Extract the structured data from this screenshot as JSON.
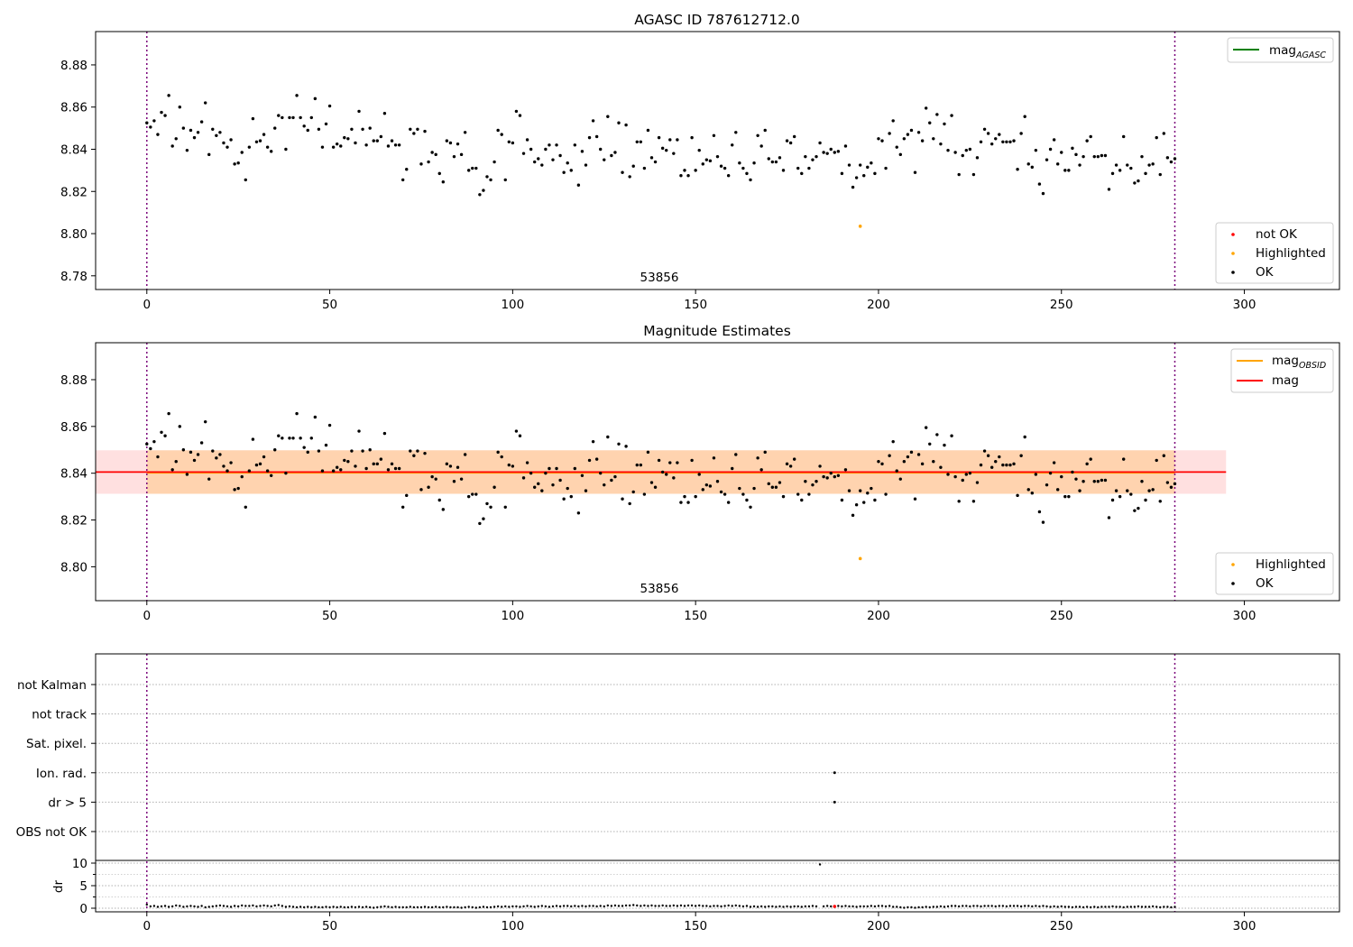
{
  "chart_data": [
    {
      "type": "scatter",
      "title": "AGASC ID 787612712.0",
      "annotation": "53856",
      "xlim": [
        -14,
        326
      ],
      "ylim": [
        8.7735,
        8.8958
      ],
      "x_ticks": [
        0,
        50,
        100,
        150,
        200,
        250,
        300
      ],
      "y_ticks": [
        8.78,
        8.8,
        8.82,
        8.84,
        8.86,
        8.88
      ],
      "y_tick_labels": [
        "8.78",
        "8.80",
        "8.82",
        "8.84",
        "8.86",
        "8.88"
      ],
      "vlines": [
        0,
        281
      ],
      "legend_top": [
        {
          "label": "mag",
          "subscript": "AGASC",
          "color": "#008000"
        }
      ],
      "legend_bottom": [
        {
          "label": "not OK",
          "color": "#ff0000"
        },
        {
          "label": "Highlighted",
          "color": "#ffa500"
        },
        {
          "label": "OK",
          "color": "#000000"
        }
      ],
      "series": [
        {
          "name": "Highlighted",
          "color": "#ffa500",
          "points": [
            [
              195,
              8.8035
            ]
          ]
        },
        {
          "name": "OK",
          "color": "#000000",
          "source": "magnitudes"
        }
      ]
    },
    {
      "type": "scatter",
      "title": "Magnitude Estimates",
      "annotation": "53856",
      "xlim": [
        -14,
        326
      ],
      "ylim": [
        8.7855,
        8.8958
      ],
      "x_ticks": [
        0,
        50,
        100,
        150,
        200,
        250,
        300
      ],
      "y_ticks": [
        8.8,
        8.82,
        8.84,
        8.86,
        8.88
      ],
      "y_tick_labels": [
        "8.80",
        "8.82",
        "8.84",
        "8.86",
        "8.88"
      ],
      "vlines": [
        0,
        281
      ],
      "mag": 8.8405,
      "mag_band": [
        8.8312,
        8.8498
      ],
      "mag_x_range": [
        -14,
        295
      ],
      "mag_obsid": 8.8402,
      "mag_obsid_band": [
        8.8312,
        8.8498
      ],
      "mag_obsid_x_range": [
        0,
        281
      ],
      "legend_top": [
        {
          "label": "mag",
          "subscript": "OBSID",
          "color": "#ffa500"
        },
        {
          "label": "mag",
          "subscript": "",
          "color": "#ff0000"
        }
      ],
      "legend_bottom": [
        {
          "label": "Highlighted",
          "color": "#ffa500"
        },
        {
          "label": "OK",
          "color": "#000000"
        }
      ],
      "series": [
        {
          "name": "Highlighted",
          "color": "#ffa500",
          "points": [
            [
              195,
              8.8035
            ]
          ]
        },
        {
          "name": "OK",
          "color": "#000000",
          "source": "magnitudes"
        }
      ]
    },
    {
      "type": "scatter",
      "xlim": [
        -14,
        326
      ],
      "x_ticks": [
        0,
        50,
        100,
        150,
        200,
        250,
        300
      ],
      "vlines": [
        0,
        281
      ],
      "flag_rows": [
        "not Kalman",
        "not track",
        "Sat. pixel.",
        "Ion. rad.",
        "dr > 5",
        "OBS not OK"
      ],
      "flag_points": [
        {
          "row": "Ion. rad.",
          "x": 188
        },
        {
          "row": "dr > 5",
          "x": 188
        }
      ],
      "dr_ylabel": "dr",
      "dr_ylim": [
        -0.8,
        10.6
      ],
      "dr_ticks": [
        0,
        5,
        10
      ],
      "dr_minor_ticks": [
        2.5,
        7.5
      ],
      "dr_outlier": {
        "x": 188,
        "y": 9.7,
        "color": "#ff0000"
      },
      "dr_values": [
        0.8,
        0.4,
        0.5,
        0.3,
        0.4,
        0.5,
        0.3,
        0.4,
        0.6,
        0.5,
        0.3,
        0.4,
        0.5,
        0.4,
        0.3,
        0.5,
        0.2,
        0.3,
        0.4,
        0.5,
        0.6,
        0.5,
        0.4,
        0.3,
        0.5,
        0.4,
        0.6,
        0.5,
        0.5,
        0.6,
        0.4,
        0.5,
        0.6,
        0.5,
        0.4,
        0.6,
        0.7,
        0.5,
        0.3,
        0.4,
        0.3,
        0.2,
        0.3,
        0.2,
        0.3,
        0.2,
        0.3,
        0.2,
        0.2,
        0.3,
        0.2,
        0.3,
        0.2,
        0.3,
        0.2,
        0.2,
        0.3,
        0.2,
        0.3,
        0.2,
        0.3,
        0.2,
        0.1,
        0.2,
        0.3,
        0.4,
        0.3,
        0.2,
        0.3,
        0.2,
        0.2,
        0.2,
        0.3,
        0.2,
        0.2,
        0.2,
        0.3,
        0.2,
        0.2,
        0.3,
        0.2,
        0.2,
        0.3,
        0.2,
        0.2,
        0.2,
        0.1,
        0.2,
        0.3,
        0.2,
        0.1,
        0.2,
        0.3,
        0.2,
        0.2,
        0.3,
        0.4,
        0.3,
        0.4,
        0.3,
        0.4,
        0.4,
        0.3,
        0.4,
        0.5,
        0.4,
        0.3,
        0.4,
        0.5,
        0.4,
        0.3,
        0.4,
        0.5,
        0.4,
        0.5,
        0.5,
        0.4,
        0.5,
        0.4,
        0.5,
        0.4,
        0.5,
        0.5,
        0.4,
        0.5,
        0.4,
        0.6,
        0.5,
        0.6,
        0.5,
        0.5,
        0.6,
        0.6,
        0.7,
        0.6,
        0.5,
        0.6,
        0.5,
        0.6,
        0.5,
        0.5,
        0.6,
        0.5,
        0.5,
        0.6,
        0.5,
        0.6,
        0.5,
        0.6,
        0.6,
        0.5,
        0.6,
        0.5,
        0.5,
        0.4,
        0.5,
        0.5,
        0.4,
        0.5,
        0.6,
        0.5,
        0.6,
        0.5,
        0.4,
        0.5,
        0.3,
        0.4,
        0.3,
        0.4,
        0.3,
        0.4,
        0.4,
        0.3,
        0.4,
        0.3,
        0.4,
        0.3,
        0.4,
        0.4,
        0.3,
        0.4,
        0.4,
        0.5,
        0.4,
        9.7,
        0.4,
        0.5,
        0.4,
        0.4,
        0.5,
        0.4,
        0.5,
        0.4,
        0.4,
        0.3,
        0.4,
        0.4,
        0.4,
        0.5,
        0.4,
        0.5,
        0.5,
        0.4,
        0.5,
        0.3,
        0.3,
        0.2,
        0.1,
        0.2,
        0.2,
        0.1,
        0.2,
        0.2,
        0.3,
        0.2,
        0.3,
        0.3,
        0.4,
        0.3,
        0.4,
        0.5,
        0.5,
        0.4,
        0.5,
        0.5,
        0.4,
        0.5,
        0.5,
        0.4,
        0.5,
        0.5,
        0.5,
        0.4,
        0.5,
        0.5,
        0.4,
        0.5,
        0.5,
        0.5,
        0.4,
        0.5,
        0.5,
        0.4,
        0.5,
        0.4,
        0.5,
        0.4,
        0.3,
        0.4,
        0.3,
        0.4,
        0.3,
        0.3,
        0.2,
        0.3,
        0.3,
        0.2,
        0.3,
        0.2,
        0.3,
        0.2,
        0.3,
        0.3,
        0.3,
        0.4,
        0.3,
        0.3,
        0.2,
        0.3,
        0.3,
        0.3,
        0.4,
        0.3,
        0.3,
        0.3,
        0.4,
        0.3,
        0.2,
        0.3,
        0.3,
        0.2,
        0.3
      ]
    }
  ],
  "magnitudes": [
    8.8525,
    8.8505,
    8.8535,
    8.847,
    8.8575,
    8.856,
    8.8655,
    8.8415,
    8.845,
    8.86,
    8.85,
    8.8395,
    8.849,
    8.8455,
    8.848,
    8.853,
    8.862,
    8.8375,
    8.8495,
    8.8465,
    8.848,
    8.843,
    8.841,
    8.8445,
    8.833,
    8.8335,
    8.8385,
    8.8255,
    8.841,
    8.8545,
    8.8435,
    8.844,
    8.847,
    8.841,
    8.839,
    8.85,
    8.856,
    8.855,
    8.84,
    8.855,
    8.855,
    8.8655,
    8.855,
    8.851,
    8.849,
    8.855,
    8.864,
    8.8495,
    8.841,
    8.852,
    8.8605,
    8.841,
    8.8425,
    8.8415,
    8.8455,
    8.845,
    8.8495,
    8.843,
    8.858,
    8.8495,
    8.842,
    8.85,
    8.844,
    8.844,
    8.846,
    8.857,
    8.8415,
    8.844,
    8.842,
    8.842,
    8.8255,
    8.8305,
    8.8495,
    8.8475,
    8.8495,
    8.833,
    8.8485,
    8.834,
    8.8385,
    8.8375,
    8.8285,
    8.8245,
    8.844,
    8.843,
    8.8365,
    8.8425,
    8.8375,
    8.848,
    8.83,
    8.831,
    8.831,
    8.8185,
    8.8205,
    8.827,
    8.8255,
    8.834,
    8.849,
    8.847,
    8.8255,
    8.8435,
    8.843,
    8.858,
    8.856,
    8.838,
    8.8445,
    8.84,
    8.834,
    8.8355,
    8.8325,
    8.84,
    8.842,
    8.835,
    8.842,
    8.837,
    8.829,
    8.8335,
    8.83,
    8.842,
    8.823,
    8.839,
    8.8325,
    8.8455,
    8.8535,
    8.846,
    8.84,
    8.835,
    8.8555,
    8.837,
    8.8385,
    8.8525,
    8.829,
    8.8515,
    8.827,
    8.832,
    8.8435,
    8.8435,
    8.831,
    8.849,
    8.836,
    8.834,
    8.8455,
    8.8405,
    8.8395,
    8.8445,
    8.838,
    8.8445,
    8.8275,
    8.83,
    8.8275,
    8.8455,
    8.83,
    8.8395,
    8.833,
    8.835,
    8.8345,
    8.8465,
    8.8365,
    8.832,
    8.831,
    8.8275,
    8.842,
    8.848,
    8.8335,
    8.831,
    8.8285,
    8.8255,
    8.8335,
    8.8465,
    8.8415,
    8.849,
    8.8355,
    8.834,
    8.834,
    8.836,
    8.83,
    8.844,
    8.843,
    8.846,
    8.831,
    8.8285,
    8.8365,
    8.831,
    8.835,
    8.8365,
    8.843,
    8.8385,
    8.838,
    8.84,
    8.8385,
    8.839,
    8.8285,
    8.8415,
    8.8325,
    8.822,
    8.8265,
    8.8325,
    8.8275,
    8.8315,
    8.8335,
    8.8285,
    8.845,
    8.844,
    8.831,
    8.8475,
    8.8535,
    8.841,
    8.8375,
    8.845,
    8.847,
    8.849,
    8.829,
    8.848,
    8.844,
    8.8595,
    8.8525,
    8.845,
    8.8565,
    8.8425,
    8.852,
    8.8395,
    8.856,
    8.8385,
    8.828,
    8.837,
    8.8395,
    8.84,
    8.828,
    8.836,
    8.8435,
    8.8495,
    8.8475,
    8.8425,
    8.845,
    8.847,
    8.8435,
    8.8435,
    8.8435,
    8.844,
    8.8305,
    8.8475,
    8.8555,
    8.833,
    8.8315,
    8.8395,
    8.8235,
    8.819,
    8.835,
    8.84,
    8.8445,
    8.833,
    8.8385,
    8.83,
    8.83,
    8.8405,
    8.8375,
    8.8325,
    8.8365,
    8.844,
    8.846,
    8.8365,
    8.8365,
    8.837,
    8.837,
    8.821,
    8.8285,
    8.8325,
    8.83,
    8.846,
    8.8325,
    8.831,
    8.824,
    8.825,
    8.8365,
    8.8285,
    8.8325,
    8.833,
    8.8455,
    8.828,
    8.8475,
    8.836,
    8.834,
    8.8355
  ]
}
